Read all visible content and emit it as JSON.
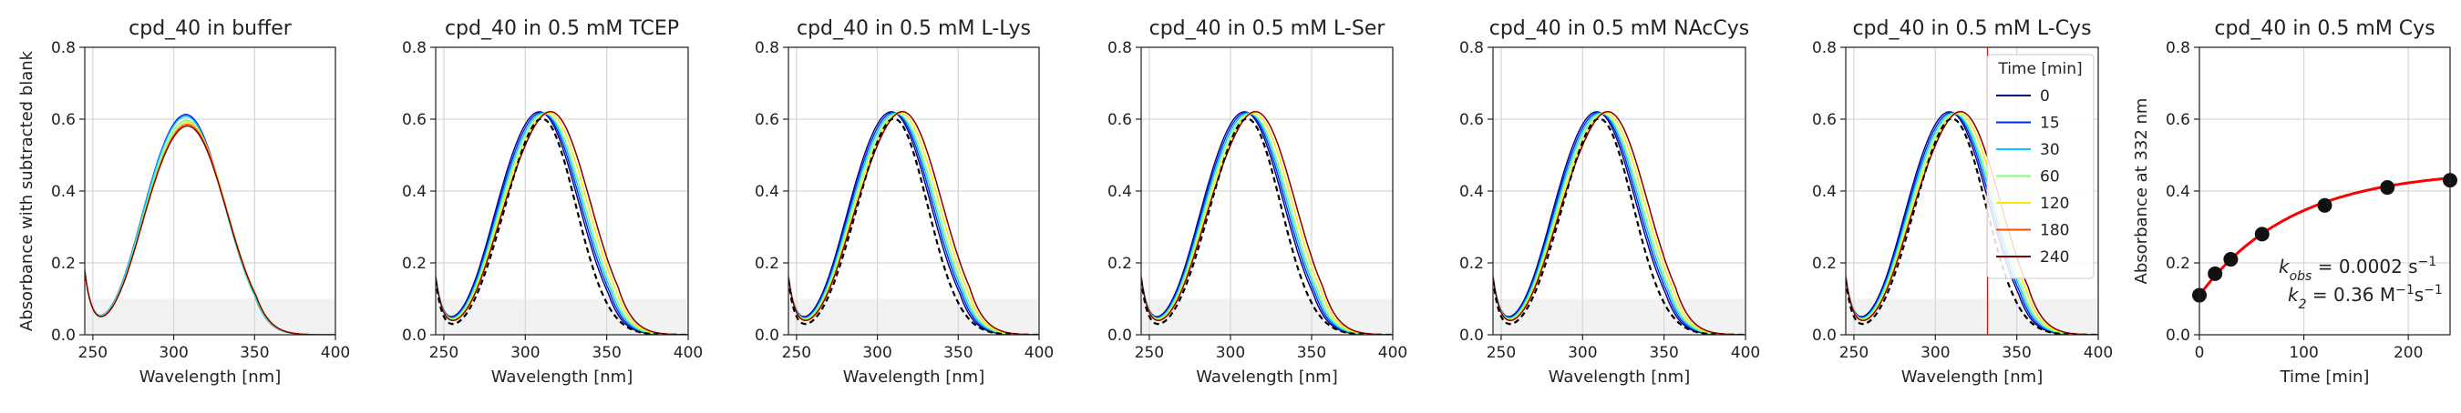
{
  "figure": {
    "wavelength_axis_label": "Wavelength [nm]",
    "absorbance_axis_label": "Absorbance with subtracted blank",
    "time_axis_label": "Time [min]",
    "absorbance332_axis_label": "Absorbance at 332 nm"
  },
  "legend": {
    "title": "Time [min]",
    "items": [
      {
        "label": "0",
        "color": "#00007f"
      },
      {
        "label": "15",
        "color": "#0026ff"
      },
      {
        "label": "30",
        "color": "#00c8ff"
      },
      {
        "label": "60",
        "color": "#7cff79"
      },
      {
        "label": "120",
        "color": "#ffe600"
      },
      {
        "label": "180",
        "color": "#ff4a00"
      },
      {
        "label": "240",
        "color": "#7f0000"
      }
    ]
  },
  "kinetics_annotation": {
    "kobs_label": "k",
    "kobs_sub": "obs",
    "kobs_value": " = 0.0002 s",
    "kobs_exp": "−1",
    "k2_label": "k",
    "k2_sub": "2",
    "k2_value": " = 0.36 M",
    "k2_exp1": "−1",
    "k2_mid": "s",
    "k2_exp2": "−1"
  },
  "colors": {
    "fit_line": "#ff0000",
    "points": "#111111",
    "vline": "#ff0000",
    "shade": "#f2f2f2",
    "grid": "#d6d6d6",
    "reference_dashed": "#000000"
  },
  "chart_data": [
    {
      "type": "line",
      "title": "cpd_40 in buffer",
      "xlabel": "Wavelength [nm]",
      "ylabel": "Absorbance with subtracted blank",
      "xlim": [
        245,
        400
      ],
      "ylim": [
        0,
        0.8
      ],
      "xticks": [
        250,
        300,
        350,
        400
      ],
      "yticks": [
        0.0,
        0.2,
        0.4,
        0.6,
        0.8
      ],
      "shaded_region_y": [
        0,
        0.1
      ],
      "series": [
        {
          "name": "0",
          "color": "#00007f",
          "peak_nm": 310,
          "peak_abs": 0.59
        },
        {
          "name": "15",
          "color": "#0026ff",
          "peak_nm": 310,
          "peak_abs": 0.59
        },
        {
          "name": "30",
          "color": "#00c8ff",
          "peak_nm": 310,
          "peak_abs": 0.585
        },
        {
          "name": "60",
          "color": "#7cff79",
          "peak_nm": 310.5,
          "peak_abs": 0.575
        },
        {
          "name": "120",
          "color": "#ffe600",
          "peak_nm": 311,
          "peak_abs": 0.57
        },
        {
          "name": "180",
          "color": "#ff4a00",
          "peak_nm": 311,
          "peak_abs": 0.565
        },
        {
          "name": "240",
          "color": "#7f0000",
          "peak_nm": 311,
          "peak_abs": 0.56
        }
      ]
    },
    {
      "type": "line",
      "title": "cpd_40 in 0.5 mM TCEP",
      "xlabel": "Wavelength [nm]",
      "xlim": [
        245,
        400
      ],
      "ylim": [
        0,
        0.8
      ],
      "xticks": [
        250,
        300,
        350,
        400
      ],
      "yticks": [
        0.0,
        0.2,
        0.4,
        0.6,
        0.8
      ],
      "shaded_region_y": [
        0,
        0.1
      ],
      "reference_dashed": {
        "peak_nm": 311,
        "peak_abs": 0.595
      },
      "series": [
        {
          "name": "0",
          "color": "#00007f",
          "peak_nm": 311,
          "peak_abs": 0.6
        },
        {
          "name": "15",
          "color": "#0026ff",
          "peak_nm": 312,
          "peak_abs": 0.6
        },
        {
          "name": "30",
          "color": "#00c8ff",
          "peak_nm": 313,
          "peak_abs": 0.6
        },
        {
          "name": "60",
          "color": "#7cff79",
          "peak_nm": 314,
          "peak_abs": 0.6
        },
        {
          "name": "120",
          "color": "#ffe600",
          "peak_nm": 315.5,
          "peak_abs": 0.605
        },
        {
          "name": "180",
          "color": "#ff4a00",
          "peak_nm": 317,
          "peak_abs": 0.61
        },
        {
          "name": "240",
          "color": "#7f0000",
          "peak_nm": 317,
          "peak_abs": 0.61
        }
      ]
    },
    {
      "type": "line",
      "title": "cpd_40 in 0.5 mM L-Lys",
      "xlabel": "Wavelength [nm]",
      "xlim": [
        245,
        400
      ],
      "ylim": [
        0,
        0.8
      ],
      "xticks": [
        250,
        300,
        350,
        400
      ],
      "yticks": [
        0.0,
        0.2,
        0.4,
        0.6,
        0.8
      ],
      "shaded_region_y": [
        0,
        0.1
      ],
      "reference_dashed": {
        "peak_nm": 311,
        "peak_abs": 0.595
      },
      "series": [
        {
          "name": "0",
          "color": "#00007f",
          "peak_nm": 311,
          "peak_abs": 0.6
        },
        {
          "name": "15",
          "color": "#0026ff",
          "peak_nm": 312,
          "peak_abs": 0.6
        },
        {
          "name": "30",
          "color": "#00c8ff",
          "peak_nm": 313,
          "peak_abs": 0.6
        },
        {
          "name": "60",
          "color": "#7cff79",
          "peak_nm": 314,
          "peak_abs": 0.6
        },
        {
          "name": "120",
          "color": "#ffe600",
          "peak_nm": 315.5,
          "peak_abs": 0.605
        },
        {
          "name": "180",
          "color": "#ff4a00",
          "peak_nm": 317,
          "peak_abs": 0.61
        },
        {
          "name": "240",
          "color": "#7f0000",
          "peak_nm": 317,
          "peak_abs": 0.61
        }
      ]
    },
    {
      "type": "line",
      "title": "cpd_40 in 0.5 mM L-Ser",
      "xlabel": "Wavelength [nm]",
      "xlim": [
        245,
        400
      ],
      "ylim": [
        0,
        0.8
      ],
      "xticks": [
        250,
        300,
        350,
        400
      ],
      "yticks": [
        0.0,
        0.2,
        0.4,
        0.6,
        0.8
      ],
      "shaded_region_y": [
        0,
        0.1
      ],
      "reference_dashed": {
        "peak_nm": 311,
        "peak_abs": 0.595
      },
      "series": [
        {
          "name": "0",
          "color": "#00007f",
          "peak_nm": 311,
          "peak_abs": 0.6
        },
        {
          "name": "15",
          "color": "#0026ff",
          "peak_nm": 312,
          "peak_abs": 0.6
        },
        {
          "name": "30",
          "color": "#00c8ff",
          "peak_nm": 313,
          "peak_abs": 0.6
        },
        {
          "name": "60",
          "color": "#7cff79",
          "peak_nm": 314,
          "peak_abs": 0.6
        },
        {
          "name": "120",
          "color": "#ffe600",
          "peak_nm": 315.5,
          "peak_abs": 0.605
        },
        {
          "name": "180",
          "color": "#ff4a00",
          "peak_nm": 317,
          "peak_abs": 0.61
        },
        {
          "name": "240",
          "color": "#7f0000",
          "peak_nm": 317,
          "peak_abs": 0.61
        }
      ]
    },
    {
      "type": "line",
      "title": "cpd_40 in 0.5 mM NAcCys",
      "xlabel": "Wavelength [nm]",
      "xlim": [
        245,
        400
      ],
      "ylim": [
        0,
        0.8
      ],
      "xticks": [
        250,
        300,
        350,
        400
      ],
      "yticks": [
        0.0,
        0.2,
        0.4,
        0.6,
        0.8
      ],
      "shaded_region_y": [
        0,
        0.1
      ],
      "reference_dashed": {
        "peak_nm": 311,
        "peak_abs": 0.595
      },
      "series": [
        {
          "name": "0",
          "color": "#00007f",
          "peak_nm": 311,
          "peak_abs": 0.6
        },
        {
          "name": "15",
          "color": "#0026ff",
          "peak_nm": 312,
          "peak_abs": 0.6
        },
        {
          "name": "30",
          "color": "#00c8ff",
          "peak_nm": 313,
          "peak_abs": 0.6
        },
        {
          "name": "60",
          "color": "#7cff79",
          "peak_nm": 314,
          "peak_abs": 0.6
        },
        {
          "name": "120",
          "color": "#ffe600",
          "peak_nm": 315.5,
          "peak_abs": 0.605
        },
        {
          "name": "180",
          "color": "#ff4a00",
          "peak_nm": 317,
          "peak_abs": 0.61
        },
        {
          "name": "240",
          "color": "#7f0000",
          "peak_nm": 317,
          "peak_abs": 0.61
        }
      ]
    },
    {
      "type": "line",
      "title": "cpd_40 in 0.5 mM L-Cys",
      "xlabel": "Wavelength [nm]",
      "xlim": [
        245,
        400
      ],
      "ylim": [
        0,
        0.8
      ],
      "xticks": [
        250,
        300,
        350,
        400
      ],
      "yticks": [
        0.0,
        0.2,
        0.4,
        0.6,
        0.8
      ],
      "shaded_region_y": [
        0,
        0.1
      ],
      "vline_x": 332,
      "reference_dashed": {
        "peak_nm": 311,
        "peak_abs": 0.595
      },
      "series": [
        {
          "name": "0",
          "color": "#00007f",
          "peak_nm": 311,
          "peak_abs": 0.6
        },
        {
          "name": "15",
          "color": "#0026ff",
          "peak_nm": 312,
          "peak_abs": 0.6
        },
        {
          "name": "30",
          "color": "#00c8ff",
          "peak_nm": 313,
          "peak_abs": 0.6
        },
        {
          "name": "60",
          "color": "#7cff79",
          "peak_nm": 314,
          "peak_abs": 0.6
        },
        {
          "name": "120",
          "color": "#ffe600",
          "peak_nm": 315.5,
          "peak_abs": 0.605
        },
        {
          "name": "180",
          "color": "#ff4a00",
          "peak_nm": 317,
          "peak_abs": 0.61
        },
        {
          "name": "240",
          "color": "#7f0000",
          "peak_nm": 317,
          "peak_abs": 0.61
        }
      ]
    },
    {
      "type": "scatter",
      "title": "cpd_40 in 0.5 mM Cys",
      "xlabel": "Time [min]",
      "ylabel": "Absorbance at 332 nm",
      "xlim": [
        0,
        240
      ],
      "ylim": [
        0,
        0.8
      ],
      "xticks": [
        0,
        100,
        200
      ],
      "yticks": [
        0.0,
        0.2,
        0.4,
        0.6,
        0.8
      ],
      "points": [
        {
          "x": 0,
          "y": 0.11
        },
        {
          "x": 15,
          "y": 0.17
        },
        {
          "x": 30,
          "y": 0.21
        },
        {
          "x": 60,
          "y": 0.28
        },
        {
          "x": 120,
          "y": 0.36
        },
        {
          "x": 180,
          "y": 0.41
        },
        {
          "x": 240,
          "y": 0.43
        }
      ],
      "fit": {
        "a": 0.11,
        "amp": 0.35,
        "k": 0.0112
      }
    }
  ]
}
